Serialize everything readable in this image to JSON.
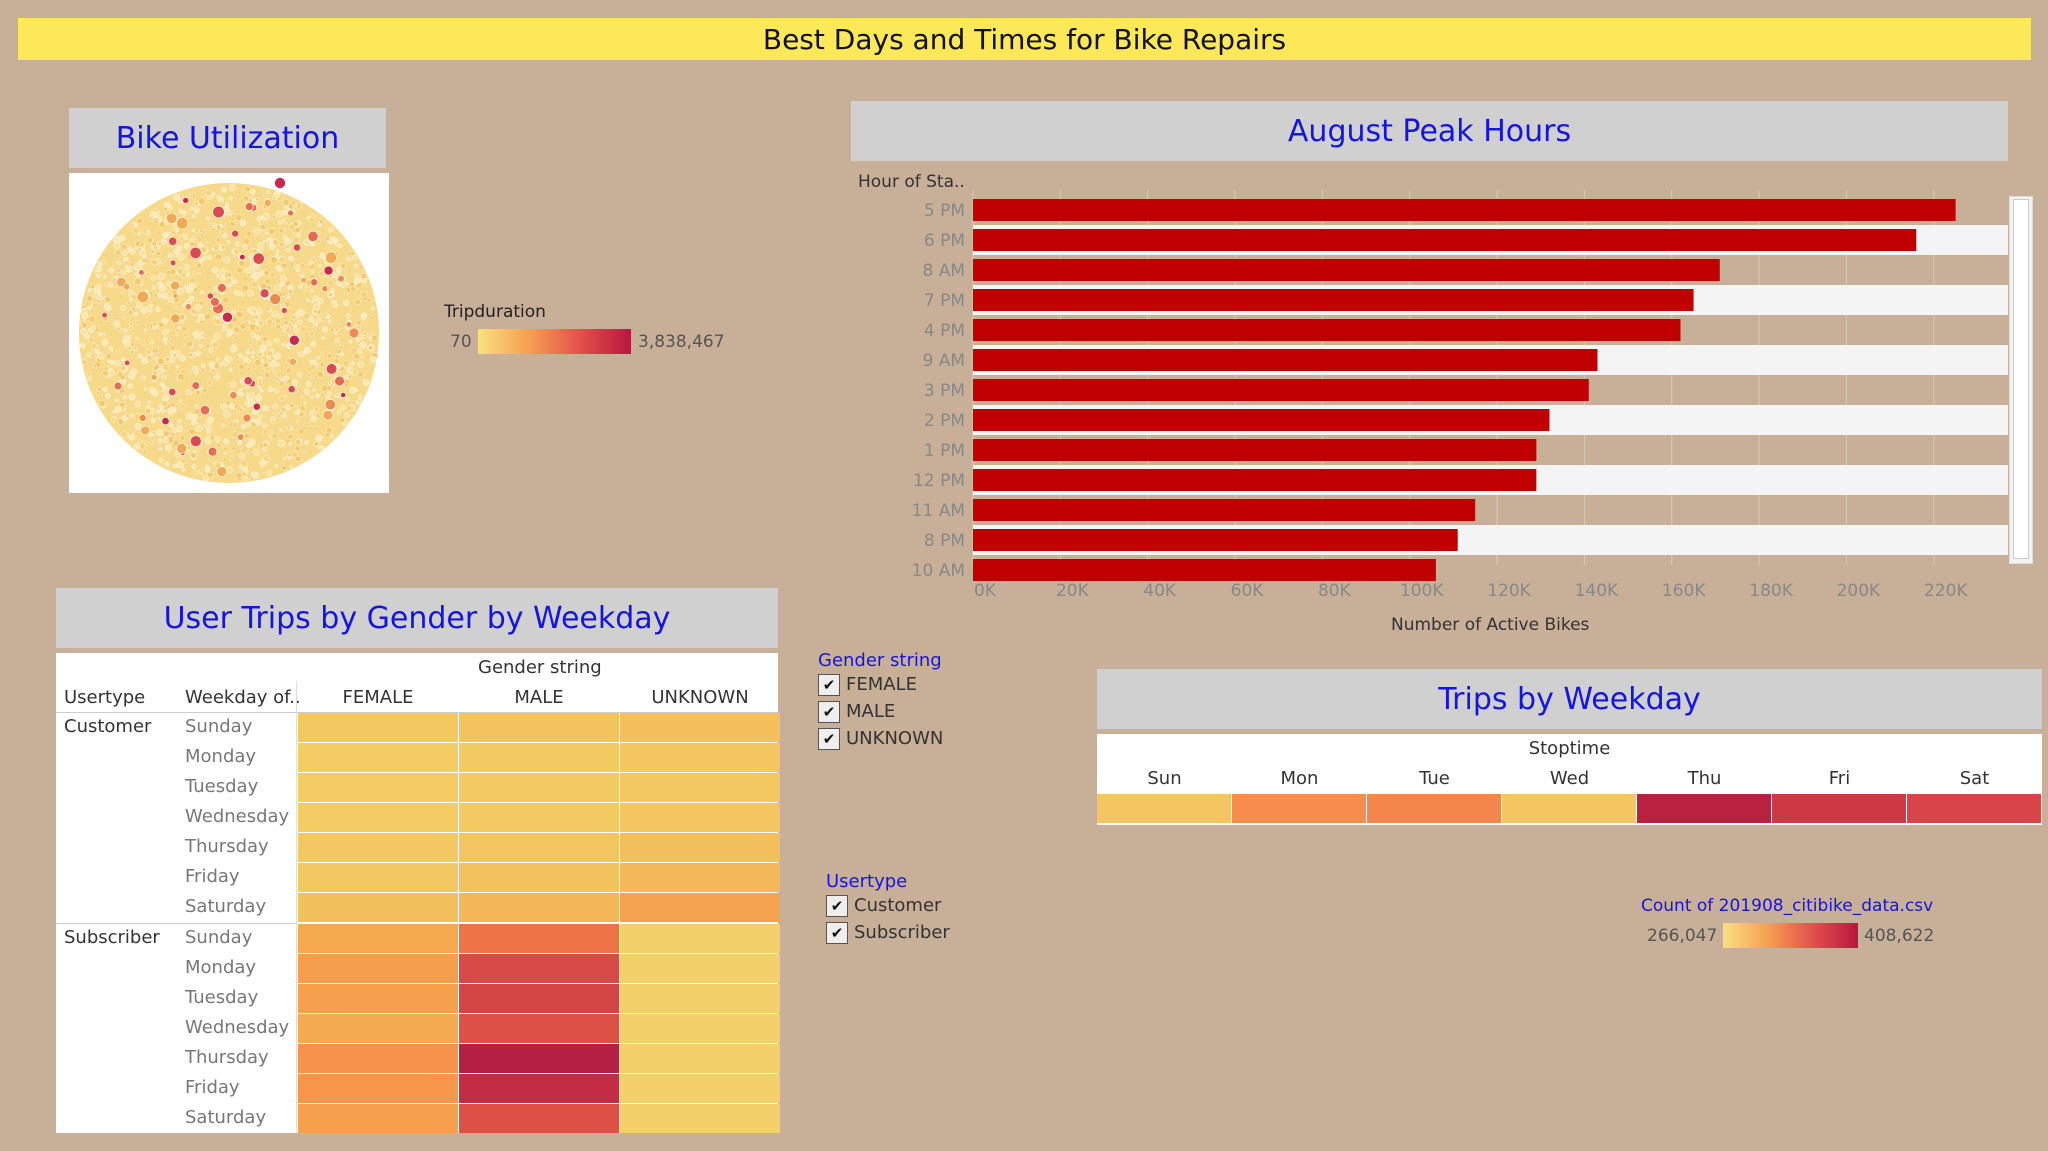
{
  "dashboard_title": "Best Days and Times for Bike Repairs",
  "bike_utilization": {
    "title": "Bike Utilization",
    "legend_title": "Tripduration",
    "legend_min": "70",
    "legend_max": "3,838,467",
    "colors": {
      "low": "#f7d77a",
      "high": "#c62a4e"
    }
  },
  "peak_hours": {
    "title": "August Peak Hours",
    "row_header": "Hour of Sta..",
    "x_axis_label": "Number of Active Bikes"
  },
  "gender_filter": {
    "title": "Gender string",
    "options": [
      {
        "label": "FEMALE",
        "checked": true
      },
      {
        "label": "MALE",
        "checked": true
      },
      {
        "label": "UNKNOWN",
        "checked": true
      }
    ]
  },
  "usertype_filter": {
    "title": "Usertype",
    "options": [
      {
        "label": "Customer",
        "checked": true
      },
      {
        "label": "Subscriber",
        "checked": true
      }
    ]
  },
  "gender_weekday": {
    "title": "User Trips by Gender by Weekday",
    "column_group_header": "Gender string",
    "col1_header": "Usertype",
    "col2_header": "Weekday of..",
    "genders": [
      "FEMALE",
      "MALE",
      "UNKNOWN"
    ],
    "groups": [
      {
        "usertype": "Customer",
        "rows": [
          {
            "day": "Sunday",
            "colors": [
              "#f4c860",
              "#f4c35e",
              "#f4bf5c"
            ]
          },
          {
            "day": "Monday",
            "colors": [
              "#f3cc64",
              "#f3c962",
              "#f3c660"
            ]
          },
          {
            "day": "Tuesday",
            "colors": [
              "#f3cc64",
              "#f3ca62",
              "#f3c761"
            ]
          },
          {
            "day": "Wednesday",
            "colors": [
              "#f3cc64",
              "#f3c962",
              "#f3c660"
            ]
          },
          {
            "day": "Thursday",
            "colors": [
              "#f3c862",
              "#f3c560",
              "#f3bf5c"
            ]
          },
          {
            "day": "Friday",
            "colors": [
              "#f3c761",
              "#f3c15e",
              "#f3b85a"
            ]
          },
          {
            "day": "Saturday",
            "colors": [
              "#f3c05e",
              "#f3b75a",
              "#f5a24e"
            ]
          }
        ]
      },
      {
        "usertype": "Subscriber",
        "rows": [
          {
            "day": "Sunday",
            "colors": [
              "#f4a94f",
              "#ee7448",
              "#f3d06a"
            ]
          },
          {
            "day": "Monday",
            "colors": [
              "#f59f4d",
              "#d84a48",
              "#f3d06a"
            ]
          },
          {
            "day": "Tuesday",
            "colors": [
              "#f5a04d",
              "#d44546",
              "#f3d06a"
            ]
          },
          {
            "day": "Wednesday",
            "colors": [
              "#f4aa50",
              "#dd5046",
              "#f3d06a"
            ]
          },
          {
            "day": "Thursday",
            "colors": [
              "#f5934a",
              "#b61f44",
              "#f3d06a"
            ]
          },
          {
            "day": "Friday",
            "colors": [
              "#f5964b",
              "#c42b45",
              "#f3d06a"
            ]
          },
          {
            "day": "Saturday",
            "colors": [
              "#f5a04d",
              "#de5046",
              "#f3d06a"
            ]
          }
        ]
      }
    ]
  },
  "trips_weekday": {
    "title": "Trips by Weekday",
    "header": "Stoptime",
    "days": [
      {
        "label": "Sun",
        "color": "#f4c560"
      },
      {
        "label": "Mon",
        "color": "#f78d4d"
      },
      {
        "label": "Tue",
        "color": "#f4854b"
      },
      {
        "label": "Wed",
        "color": "#f3c662"
      },
      {
        "label": "Thu",
        "color": "#b8213f"
      },
      {
        "label": "Fri",
        "color": "#cc3844"
      },
      {
        "label": "Sat",
        "color": "#d84448"
      }
    ],
    "legend_title": "Count of 201908_citibike_data.csv",
    "legend_min": "266,047",
    "legend_max": "408,622"
  },
  "chart_data": {
    "type": "bar",
    "orientation": "horizontal",
    "title": "August Peak Hours",
    "ylabel": "Hour of Sta..",
    "xlabel": "Number of Active Bikes",
    "xlim": [
      0,
      237000
    ],
    "x_ticks": [
      "0K",
      "20K",
      "40K",
      "60K",
      "80K",
      "100K",
      "120K",
      "140K",
      "160K",
      "180K",
      "200K",
      "220K"
    ],
    "categories": [
      "5 PM",
      "6 PM",
      "8 AM",
      "7 PM",
      "4 PM",
      "9 AM",
      "3 PM",
      "2 PM",
      "1 PM",
      "12 PM",
      "11 AM",
      "8 PM",
      "10 AM"
    ],
    "values": [
      225000,
      216000,
      171000,
      165000,
      162000,
      143000,
      141000,
      132000,
      129000,
      129000,
      115000,
      111000,
      106000
    ],
    "bar_color": "#c00000",
    "grid": true
  }
}
